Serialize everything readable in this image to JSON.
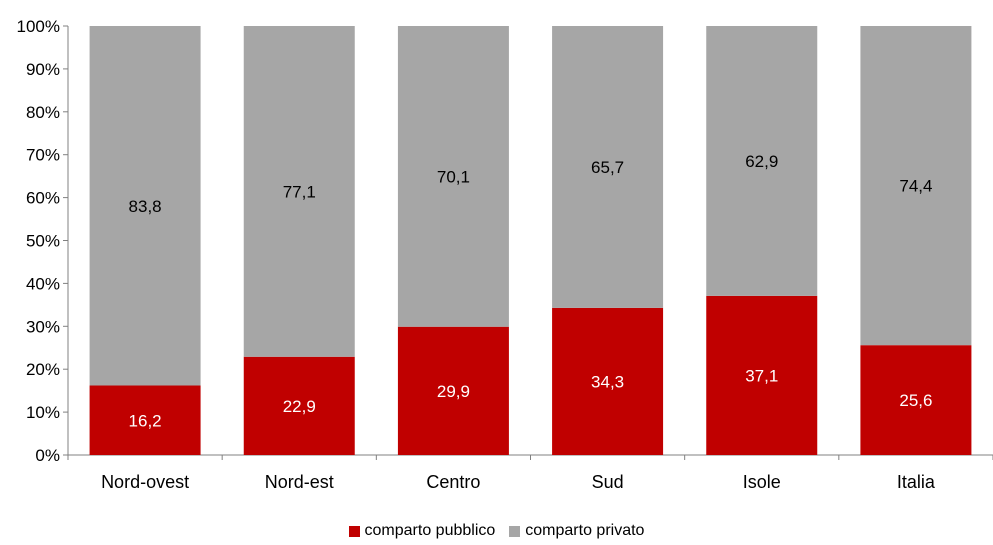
{
  "chart_data": {
    "type": "bar",
    "stacked": true,
    "categories": [
      "Nord-ovest",
      "Nord-est",
      "Centro",
      "Sud",
      "Isole",
      "Italia"
    ],
    "series": [
      {
        "name": "comparto pubblico",
        "color": "#C00000",
        "values": [
          16.2,
          22.9,
          29.9,
          34.3,
          37.1,
          25.6
        ],
        "labels": [
          "16,2",
          "22,9",
          "29,9",
          "34,3",
          "37,1",
          "25,6"
        ]
      },
      {
        "name": "comparto privato",
        "color": "#A6A6A6",
        "values": [
          83.8,
          77.1,
          70.1,
          65.7,
          62.9,
          74.4
        ],
        "labels": [
          "83,8",
          "77,1",
          "70,1",
          "65,7",
          "62,9",
          "74,4"
        ]
      }
    ],
    "yticks": [
      "0%",
      "10%",
      "20%",
      "30%",
      "40%",
      "50%",
      "60%",
      "70%",
      "80%",
      "90%",
      "100%"
    ],
    "ylim": [
      0,
      100
    ],
    "grid": false,
    "legend_position": "bottom",
    "title": "",
    "xlabel": "",
    "ylabel": ""
  }
}
